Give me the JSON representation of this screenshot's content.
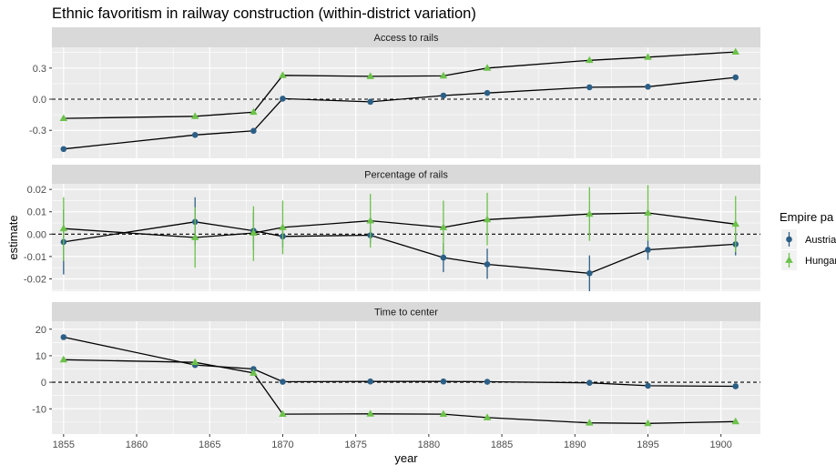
{
  "chart_data": {
    "type": "scatter",
    "title": "Ethnic favoritism in railway construction (within-district variation)",
    "xlabel": "year",
    "ylabel": "estimate",
    "legend": {
      "title": "Empire pa",
      "position": "right",
      "entries": [
        "Austria",
        "Hungar"
      ]
    },
    "colors": {
      "austria": "#2c5f86",
      "hungary": "#6cc24a",
      "panel_bg": "#ebebeb",
      "strip_bg": "#d9d9d9",
      "grid": "#ffffff",
      "line": "#000000"
    },
    "x_ticks": [
      1855,
      1860,
      1865,
      1870,
      1875,
      1880,
      1885,
      1890,
      1895,
      1900
    ],
    "xlim": [
      1854.2,
      1902.7
    ],
    "panels": [
      {
        "strip": "Access to rails",
        "ylim": [
          -0.57,
          0.5
        ],
        "y_ticks": [
          0.3,
          0.0,
          -0.3
        ],
        "y_tick_labels": [
          "0.3",
          "0.0",
          "-0.3"
        ],
        "reference_line": 0,
        "series": [
          {
            "key": "austria",
            "marker": "circle",
            "points": [
              {
                "x": 1855,
                "y": -0.48,
                "lo": -0.495,
                "hi": -0.465
              },
              {
                "x": 1864,
                "y": -0.345,
                "lo": -0.36,
                "hi": -0.33
              },
              {
                "x": 1868,
                "y": -0.305,
                "lo": -0.32,
                "hi": -0.29
              },
              {
                "x": 1870,
                "y": 0.005,
                "lo": -0.01,
                "hi": 0.02
              },
              {
                "x": 1876,
                "y": -0.025,
                "lo": -0.04,
                "hi": -0.01
              },
              {
                "x": 1881,
                "y": 0.035,
                "lo": 0.02,
                "hi": 0.05
              },
              {
                "x": 1884,
                "y": 0.06,
                "lo": 0.045,
                "hi": 0.075
              },
              {
                "x": 1891,
                "y": 0.115,
                "lo": 0.1,
                "hi": 0.13
              },
              {
                "x": 1895,
                "y": 0.12,
                "lo": 0.105,
                "hi": 0.135
              },
              {
                "x": 1901,
                "y": 0.21,
                "lo": 0.195,
                "hi": 0.225
              }
            ]
          },
          {
            "key": "hungary",
            "marker": "triangle",
            "points": [
              {
                "x": 1855,
                "y": -0.185,
                "lo": -0.205,
                "hi": -0.165
              },
              {
                "x": 1864,
                "y": -0.165,
                "lo": -0.19,
                "hi": -0.14
              },
              {
                "x": 1868,
                "y": -0.125,
                "lo": -0.15,
                "hi": -0.1
              },
              {
                "x": 1870,
                "y": 0.23,
                "lo": 0.205,
                "hi": 0.255
              },
              {
                "x": 1876,
                "y": 0.22,
                "lo": 0.195,
                "hi": 0.245
              },
              {
                "x": 1881,
                "y": 0.225,
                "lo": 0.2,
                "hi": 0.25
              },
              {
                "x": 1884,
                "y": 0.3,
                "lo": 0.275,
                "hi": 0.325
              },
              {
                "x": 1891,
                "y": 0.375,
                "lo": 0.35,
                "hi": 0.4
              },
              {
                "x": 1895,
                "y": 0.405,
                "lo": 0.38,
                "hi": 0.43
              },
              {
                "x": 1901,
                "y": 0.455,
                "lo": 0.43,
                "hi": 0.48
              }
            ]
          }
        ]
      },
      {
        "strip": "Percentage of rails",
        "ylim": [
          -0.0255,
          0.0225
        ],
        "y_ticks": [
          0.02,
          0.01,
          0.0,
          -0.01,
          -0.02
        ],
        "y_tick_labels": [
          "0.02",
          "0.01",
          "0.00",
          "-0.01",
          "-0.02"
        ],
        "reference_line": 0,
        "series": [
          {
            "key": "austria",
            "marker": "circle",
            "points": [
              {
                "x": 1855,
                "y": -0.0035,
                "lo": -0.018,
                "hi": 0.011
              },
              {
                "x": 1864,
                "y": 0.0055,
                "lo": -0.005,
                "hi": 0.0165
              },
              {
                "x": 1868,
                "y": 0.0015,
                "lo": -0.007,
                "hi": 0.01
              },
              {
                "x": 1870,
                "y": -0.001,
                "lo": -0.006,
                "hi": 0.004
              },
              {
                "x": 1876,
                "y": -0.0005,
                "lo": -0.004,
                "hi": 0.003
              },
              {
                "x": 1881,
                "y": -0.0105,
                "lo": -0.017,
                "hi": -0.004
              },
              {
                "x": 1884,
                "y": -0.0135,
                "lo": -0.02,
                "hi": -0.0065
              },
              {
                "x": 1891,
                "y": -0.0175,
                "lo": -0.0255,
                "hi": -0.0095
              },
              {
                "x": 1895,
                "y": -0.007,
                "lo": -0.0115,
                "hi": -0.0025
              },
              {
                "x": 1901,
                "y": -0.0045,
                "lo": -0.0095,
                "hi": 0.0005
              }
            ]
          },
          {
            "key": "hungary",
            "marker": "triangle",
            "points": [
              {
                "x": 1855,
                "y": 0.0025,
                "lo": -0.012,
                "hi": 0.0165
              },
              {
                "x": 1864,
                "y": -0.0015,
                "lo": -0.015,
                "hi": 0.012
              },
              {
                "x": 1868,
                "y": 0.0005,
                "lo": -0.012,
                "hi": 0.0125
              },
              {
                "x": 1870,
                "y": 0.003,
                "lo": -0.009,
                "hi": 0.015
              },
              {
                "x": 1876,
                "y": 0.006,
                "lo": -0.006,
                "hi": 0.018
              },
              {
                "x": 1881,
                "y": 0.003,
                "lo": -0.009,
                "hi": 0.015
              },
              {
                "x": 1884,
                "y": 0.0065,
                "lo": -0.005,
                "hi": 0.0185
              },
              {
                "x": 1891,
                "y": 0.009,
                "lo": -0.003,
                "hi": 0.021
              },
              {
                "x": 1895,
                "y": 0.0095,
                "lo": -0.003,
                "hi": 0.022
              },
              {
                "x": 1901,
                "y": 0.0045,
                "lo": -0.008,
                "hi": 0.017
              }
            ]
          }
        ]
      },
      {
        "strip": "Time to center",
        "ylim": [
          -19.5,
          23.0
        ],
        "y_ticks": [
          20,
          10,
          0,
          -10
        ],
        "y_tick_labels": [
          "20",
          "10",
          "0",
          "-10"
        ],
        "reference_line": 0,
        "series": [
          {
            "key": "austria",
            "marker": "circle",
            "points": [
              {
                "x": 1855,
                "y": 17.0,
                "lo": 16.5,
                "hi": 17.5
              },
              {
                "x": 1864,
                "y": 6.5,
                "lo": 6.0,
                "hi": 7.0
              },
              {
                "x": 1868,
                "y": 5.0,
                "lo": 4.5,
                "hi": 5.5
              },
              {
                "x": 1870,
                "y": 0.2,
                "lo": -0.3,
                "hi": 0.7
              },
              {
                "x": 1876,
                "y": 0.3,
                "lo": -0.2,
                "hi": 0.8
              },
              {
                "x": 1881,
                "y": 0.3,
                "lo": -0.2,
                "hi": 0.8
              },
              {
                "x": 1884,
                "y": 0.2,
                "lo": -0.3,
                "hi": 0.7
              },
              {
                "x": 1891,
                "y": -0.2,
                "lo": -0.7,
                "hi": 0.3
              },
              {
                "x": 1895,
                "y": -1.3,
                "lo": -1.8,
                "hi": -0.8
              },
              {
                "x": 1901,
                "y": -1.5,
                "lo": -2.0,
                "hi": -1.0
              }
            ]
          },
          {
            "key": "hungary",
            "marker": "triangle",
            "points": [
              {
                "x": 1855,
                "y": 8.5,
                "lo": 8.0,
                "hi": 9.0
              },
              {
                "x": 1864,
                "y": 7.5,
                "lo": 7.0,
                "hi": 8.0
              },
              {
                "x": 1868,
                "y": 3.5,
                "lo": 3.0,
                "hi": 4.0
              },
              {
                "x": 1870,
                "y": -12.0,
                "lo": -12.5,
                "hi": -11.5
              },
              {
                "x": 1876,
                "y": -11.9,
                "lo": -12.4,
                "hi": -11.4
              },
              {
                "x": 1881,
                "y": -12.0,
                "lo": -12.5,
                "hi": -11.5
              },
              {
                "x": 1884,
                "y": -13.3,
                "lo": -13.8,
                "hi": -12.8
              },
              {
                "x": 1891,
                "y": -15.3,
                "lo": -15.8,
                "hi": -14.8
              },
              {
                "x": 1895,
                "y": -15.5,
                "lo": -16.0,
                "hi": -15.0
              },
              {
                "x": 1901,
                "y": -14.8,
                "lo": -15.3,
                "hi": -14.3
              }
            ]
          }
        ]
      }
    ]
  }
}
